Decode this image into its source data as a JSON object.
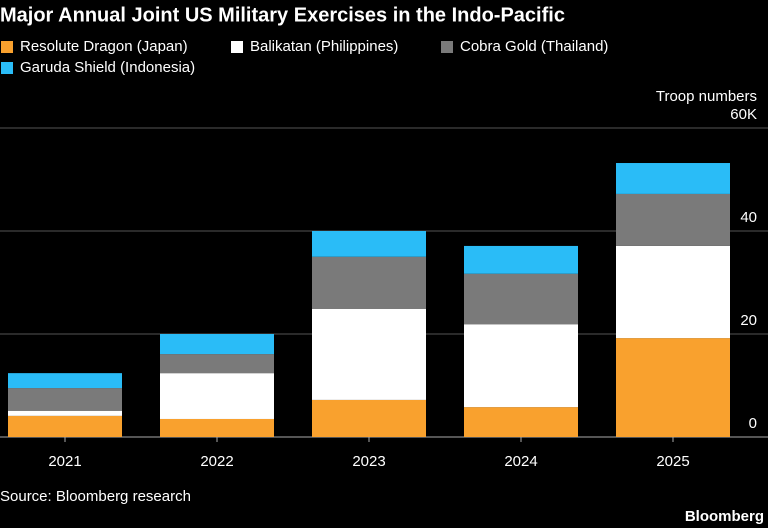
{
  "chart_data": {
    "type": "stacked_bar",
    "title": "Major Annual Joint US Military Exercises in the Indo-Pacific",
    "y_axis_label": "Troop numbers",
    "categories": [
      "2021",
      "2022",
      "2023",
      "2024",
      "2025"
    ],
    "series": [
      {
        "name": "Resolute Dragon (Japan)",
        "color": "#f9a12e",
        "values": [
          4.1,
          3.5,
          7.2,
          5.8,
          19.2
        ]
      },
      {
        "name": "Balikatan (Philippines)",
        "color": "#ffffff",
        "values": [
          1,
          8.9,
          17.7,
          16.1,
          17.9
        ]
      },
      {
        "name": "Cobra Gold (Thailand)",
        "color": "#7a7a7a",
        "values": [
          4.4,
          3.7,
          10.1,
          9.8,
          10.1
        ]
      },
      {
        "name": "Garuda Shield (Indonesia)",
        "color": "#2abcf7",
        "values": [
          2.9,
          3.9,
          5,
          5.4,
          6
        ]
      }
    ],
    "ylim": [
      0,
      60
    ],
    "yticks": [
      0,
      20,
      40,
      {
        "value": 60,
        "label": "60K"
      }
    ],
    "grid": true,
    "source": "Source: Bloomberg research",
    "brand": "Bloomberg"
  }
}
